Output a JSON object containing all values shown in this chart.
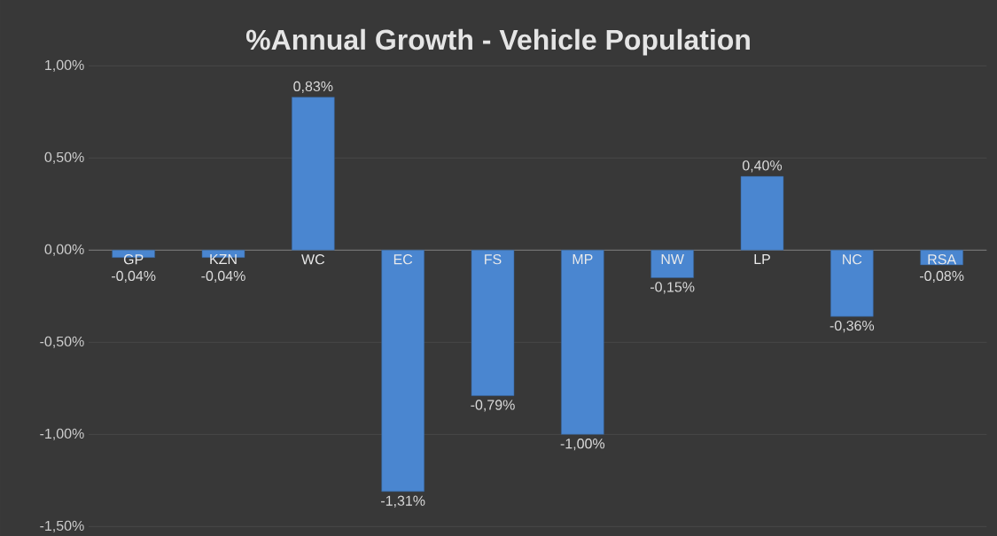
{
  "chart_data": {
    "type": "bar",
    "title": "%Annual Growth - Vehicle Population",
    "categories": [
      "GP",
      "KZN",
      "WC",
      "EC",
      "FS",
      "MP",
      "NW",
      "LP",
      "NC",
      "RSA"
    ],
    "values": [
      -0.04,
      -0.04,
      0.83,
      -1.31,
      -0.79,
      -1.0,
      -0.15,
      0.4,
      -0.36,
      -0.08
    ],
    "value_labels": [
      "-0,04%",
      "-0,04%",
      "0,83%",
      "-1,31%",
      "-0,79%",
      "-1,00%",
      "-0,15%",
      "0,40%",
      "-0,36%",
      "-0,08%"
    ],
    "color": "#4a86d0",
    "ylim": [
      -1.5,
      1.0
    ],
    "yticks": [
      {
        "value": -1.5,
        "label": "-1,50%"
      },
      {
        "value": -1.0,
        "label": "-1,00%"
      },
      {
        "value": -0.5,
        "label": "-0,50%"
      },
      {
        "value": 0,
        "label": "0,00%"
      },
      {
        "value": 0.5,
        "label": "0,50%"
      },
      {
        "value": 1.0,
        "label": "1,00%"
      }
    ],
    "grid": "y"
  }
}
